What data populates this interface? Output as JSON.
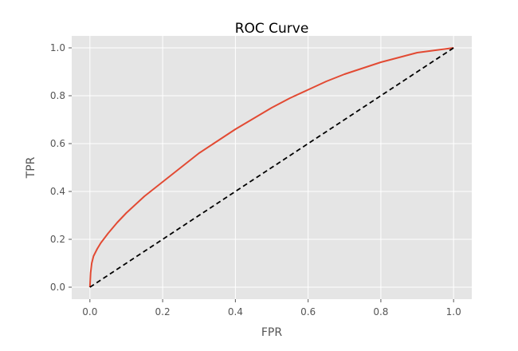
{
  "chart_data": {
    "type": "line",
    "title": "ROC Curve",
    "xlabel": "FPR",
    "ylabel": "TPR",
    "xlim": [
      -0.05,
      1.05
    ],
    "ylim": [
      -0.05,
      1.05
    ],
    "x_ticks": [
      "0.0",
      "0.2",
      "0.4",
      "0.6",
      "0.8",
      "1.0"
    ],
    "y_ticks": [
      "0.0",
      "0.2",
      "0.4",
      "0.6",
      "0.8",
      "1.0"
    ],
    "grid": true,
    "background_color": "#E5E5E5",
    "series": [
      {
        "color": "#E24A33",
        "style": "solid",
        "x": [
          0.0,
          0.002,
          0.005,
          0.01,
          0.02,
          0.03,
          0.05,
          0.075,
          0.1,
          0.15,
          0.2,
          0.25,
          0.3,
          0.35,
          0.4,
          0.45,
          0.5,
          0.55,
          0.6,
          0.65,
          0.7,
          0.75,
          0.8,
          0.85,
          0.9,
          0.95,
          1.0
        ],
        "y": [
          0.0,
          0.06,
          0.1,
          0.13,
          0.16,
          0.185,
          0.225,
          0.27,
          0.31,
          0.38,
          0.44,
          0.5,
          0.56,
          0.61,
          0.66,
          0.705,
          0.75,
          0.79,
          0.825,
          0.86,
          0.89,
          0.915,
          0.94,
          0.96,
          0.98,
          0.99,
          1.0
        ]
      },
      {
        "color": "#000000",
        "style": "dashed",
        "x": [
          0.0,
          1.0
        ],
        "y": [
          0.0,
          1.0
        ]
      }
    ]
  }
}
